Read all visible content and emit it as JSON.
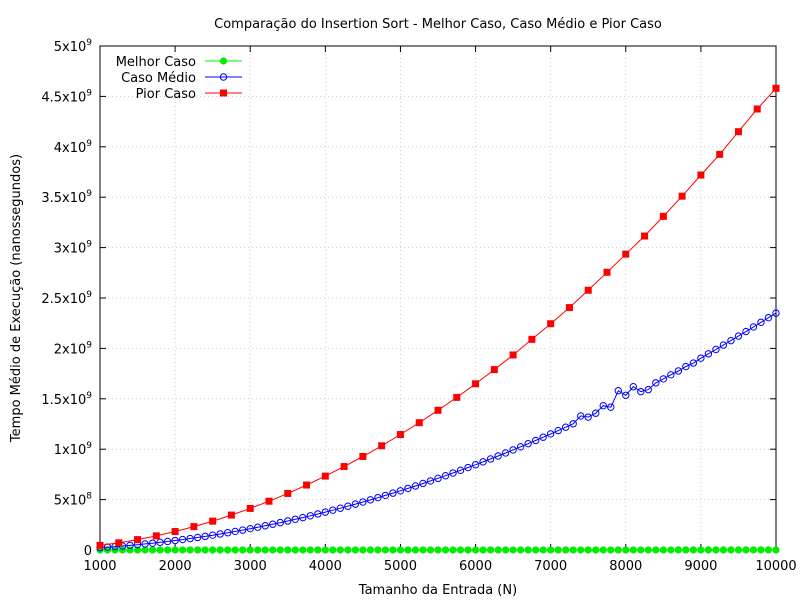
{
  "chart_data": {
    "type": "line",
    "title": "Comparação do Insertion Sort - Melhor Caso, Caso Médio e Pior Caso",
    "xlabel": "Tamanho da Entrada (N)",
    "ylabel": "Tempo Médio de Execução (nanossegundos)",
    "xlim": [
      1000,
      10000
    ],
    "ylim": [
      0,
      5000000000
    ],
    "grid": true,
    "legend_position": "top-left",
    "x_ticks": [
      1000,
      2000,
      3000,
      4000,
      5000,
      6000,
      7000,
      8000,
      9000,
      10000
    ],
    "x_tick_labels": [
      "1000",
      "2000",
      "3000",
      "4000",
      "5000",
      "6000",
      "7000",
      "8000",
      "9000",
      "10000"
    ],
    "y_ticks": [
      {
        "value": 0,
        "mantissa": "0",
        "exp": ""
      },
      {
        "value": 500000000,
        "mantissa": "5x10",
        "exp": "8"
      },
      {
        "value": 1000000000,
        "mantissa": "1x10",
        "exp": "9"
      },
      {
        "value": 1500000000,
        "mantissa": "1.5x10",
        "exp": "9"
      },
      {
        "value": 2000000000,
        "mantissa": "2x10",
        "exp": "9"
      },
      {
        "value": 2500000000,
        "mantissa": "2.5x10",
        "exp": "9"
      },
      {
        "value": 3000000000,
        "mantissa": "3x10",
        "exp": "9"
      },
      {
        "value": 3500000000,
        "mantissa": "3.5x10",
        "exp": "9"
      },
      {
        "value": 4000000000,
        "mantissa": "4x10",
        "exp": "9"
      },
      {
        "value": 4500000000,
        "mantissa": "4.5x10",
        "exp": "9"
      },
      {
        "value": 5000000000,
        "mantissa": "5x10",
        "exp": "9"
      }
    ],
    "series": [
      {
        "name": "Melhor Caso",
        "color": "#00ee00",
        "marker": "filled-circle",
        "x": [
          1000,
          1100,
          1200,
          1300,
          1400,
          1500,
          1600,
          1700,
          1800,
          1900,
          2000,
          2100,
          2200,
          2300,
          2400,
          2500,
          2600,
          2700,
          2800,
          2900,
          3000,
          3100,
          3200,
          3300,
          3400,
          3500,
          3600,
          3700,
          3800,
          3900,
          4000,
          4100,
          4200,
          4300,
          4400,
          4500,
          4600,
          4700,
          4800,
          4900,
          5000,
          5100,
          5200,
          5300,
          5400,
          5500,
          5600,
          5700,
          5800,
          5900,
          6000,
          6100,
          6200,
          6300,
          6400,
          6500,
          6600,
          6700,
          6800,
          6900,
          7000,
          7100,
          7200,
          7300,
          7400,
          7500,
          7600,
          7700,
          7800,
          7900,
          8000,
          8100,
          8200,
          8300,
          8400,
          8500,
          8600,
          8700,
          8800,
          8900,
          9000,
          9100,
          9200,
          9300,
          9400,
          9500,
          9600,
          9700,
          9800,
          9900,
          10000
        ],
        "y": [
          100000,
          110000,
          120000,
          130000,
          140000,
          150000,
          160000,
          170000,
          180000,
          190000,
          200000,
          210000,
          220000,
          230000,
          240000,
          250000,
          260000,
          270000,
          280000,
          290000,
          300000,
          310000,
          320000,
          330000,
          340000,
          350000,
          360000,
          370000,
          380000,
          390000,
          400000,
          410000,
          420000,
          430000,
          440000,
          450000,
          460000,
          470000,
          480000,
          490000,
          500000,
          510000,
          520000,
          530000,
          540000,
          550000,
          560000,
          570000,
          580000,
          590000,
          600000,
          610000,
          620000,
          630000,
          640000,
          650000,
          660000,
          670000,
          680000,
          690000,
          700000,
          710000,
          720000,
          730000,
          740000,
          750000,
          760000,
          770000,
          780000,
          790000,
          800000,
          810000,
          820000,
          830000,
          840000,
          850000,
          860000,
          870000,
          880000,
          890000,
          900000,
          910000,
          920000,
          930000,
          940000,
          950000,
          960000,
          970000,
          980000,
          990000,
          1000000
        ]
      },
      {
        "name": "Caso Médio",
        "color": "#0000ff",
        "marker": "open-circle",
        "x": [
          1000,
          1100,
          1200,
          1300,
          1400,
          1500,
          1600,
          1700,
          1800,
          1900,
          2000,
          2100,
          2200,
          2300,
          2400,
          2500,
          2600,
          2700,
          2800,
          2900,
          3000,
          3100,
          3200,
          3300,
          3400,
          3500,
          3600,
          3700,
          3800,
          3900,
          4000,
          4100,
          4200,
          4300,
          4400,
          4500,
          4600,
          4700,
          4800,
          4900,
          5000,
          5100,
          5200,
          5300,
          5400,
          5500,
          5600,
          5700,
          5800,
          5900,
          6000,
          6100,
          6200,
          6300,
          6400,
          6500,
          6600,
          6700,
          6800,
          6900,
          7000,
          7100,
          7200,
          7300,
          7400,
          7500,
          7600,
          7700,
          7800,
          7900,
          8000,
          8100,
          8200,
          8300,
          8400,
          8500,
          8600,
          8700,
          8800,
          8900,
          9000,
          9100,
          9200,
          9300,
          9400,
          9500,
          9600,
          9700,
          9800,
          9900,
          10000
        ],
        "y": [
          23500000,
          28400000,
          33800000,
          39700000,
          46100000,
          52900000,
          60200000,
          67900000,
          76100000,
          84800000,
          94000000,
          103600000,
          113700000,
          124300000,
          135400000,
          146900000,
          158900000,
          171300000,
          184200000,
          197600000,
          211500000,
          225800000,
          240600000,
          255900000,
          271700000,
          287900000,
          304600000,
          321700000,
          339300000,
          357400000,
          376000000,
          395000000,
          414500000,
          434500000,
          455000000,
          475900000,
          497300000,
          519100000,
          541400000,
          564200000,
          587500000,
          611200000,
          635400000,
          660100000,
          685300000,
          710900000,
          737000000,
          763500000,
          790500000,
          818000000,
          846000000,
          874400000,
          903300000,
          932700000,
          962600000,
          992900000,
          1023700000,
          1054900000,
          1086600000,
          1118800000,
          1151500000,
          1184600000,
          1218200000,
          1252300000,
          1330000000,
          1318000000,
          1357000000,
          1432000000,
          1417000000,
          1580000000,
          1535000000,
          1620000000,
          1571000000,
          1591000000,
          1658000000,
          1697000000,
          1738000000,
          1776000000,
          1820000000,
          1855000000,
          1903000000,
          1946000000,
          1989000000,
          2033000000,
          2077000000,
          2122000000,
          2167000000,
          2213000000,
          2259000000,
          2305000000,
          2350000000
        ]
      },
      {
        "name": "Pior Caso",
        "color": "#ff0000",
        "marker": "filled-square",
        "x": [
          1000,
          1250,
          1500,
          1750,
          2000,
          2250,
          2500,
          2750,
          3000,
          3250,
          3500,
          3750,
          4000,
          4250,
          4500,
          4750,
          5000,
          5250,
          5500,
          5750,
          6000,
          6250,
          6500,
          6750,
          7000,
          7250,
          7500,
          7750,
          8000,
          8250,
          8500,
          8750,
          9000,
          9250,
          9500,
          9750,
          10000
        ],
        "y": [
          45800000,
          71600000,
          103100000,
          140300000,
          183300000,
          232000000,
          286400000,
          346500000,
          412400000,
          484000000,
          561300000,
          644400000,
          733200000,
          827800000,
          928000000,
          1034000000,
          1145500000,
          1263000000,
          1386000000,
          1514000000,
          1649000000,
          1790000000,
          1935000000,
          2090000000,
          2245000000,
          2405000000,
          2577000000,
          2755000000,
          2935000000,
          3115000000,
          3310000000,
          3510000000,
          3720000000,
          3925000000,
          4150000000,
          4375000000,
          4580000000
        ]
      }
    ]
  }
}
